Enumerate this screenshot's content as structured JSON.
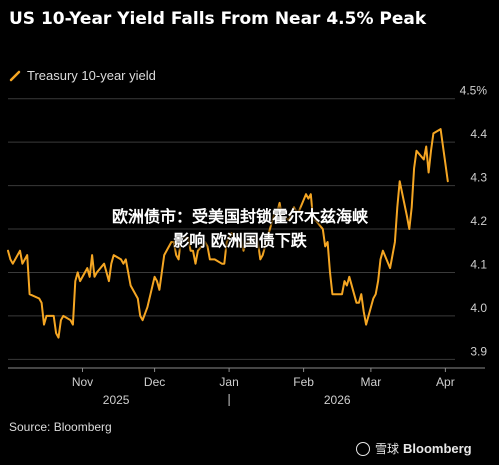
{
  "header": {
    "title": "US 10-Year Yield Falls From Near 4.5% Peak"
  },
  "footer": {
    "source": "Source: Bloomberg"
  },
  "overlay": {
    "headline_line1": "欧洲债市：受美国封锁霍尔木兹海峡",
    "headline_line2": "影响 欧洲国债下跌"
  },
  "watermark": {
    "site": "雪球",
    "logo": "Bloomberg"
  },
  "chart_data": {
    "type": "line",
    "title": "US 10-Year Yield Falls From Near 4.5% Peak",
    "xlabel": "",
    "ylabel": "",
    "ylim": [
      3.88,
      4.52
    ],
    "xlim": [
      "2025-10-01",
      "2026-04-05"
    ],
    "grid": true,
    "legend": "top-left",
    "x_tick_labels": [
      "Nov",
      "Dec",
      "Jan",
      "Feb",
      "Mar",
      "Apr"
    ],
    "x_ticks": [
      "2025-11-01",
      "2025-12-01",
      "2026-01-01",
      "2026-02-01",
      "2026-03-01",
      "2026-04-01"
    ],
    "year_labels": [
      {
        "label": "2025",
        "at": "2025-11-15"
      },
      {
        "label": "2026",
        "at": "2026-02-15"
      }
    ],
    "year_divider": "2026-01-01",
    "y_ticks": [
      3.9,
      4.0,
      4.1,
      4.2,
      4.3,
      4.4,
      4.5
    ],
    "y_tick_labels": [
      "3.9",
      "4.0",
      "4.1",
      "4.2",
      "4.3",
      "4.4",
      "4.5%"
    ],
    "colors": {
      "line": "#f5a623",
      "grid": "#3a3a3a",
      "axis": "#cfcfcf"
    },
    "series": [
      {
        "name": "Treasury 10-year yield",
        "x": [
          "2025-10-01",
          "2025-10-02",
          "2025-10-03",
          "2025-10-06",
          "2025-10-07",
          "2025-10-08",
          "2025-10-09",
          "2025-10-10",
          "2025-10-14",
          "2025-10-15",
          "2025-10-16",
          "2025-10-17",
          "2025-10-20",
          "2025-10-21",
          "2025-10-22",
          "2025-10-23",
          "2025-10-24",
          "2025-10-27",
          "2025-10-28",
          "2025-10-29",
          "2025-10-30",
          "2025-10-31",
          "2025-11-03",
          "2025-11-04",
          "2025-11-05",
          "2025-11-06",
          "2025-11-07",
          "2025-11-10",
          "2025-11-11",
          "2025-11-12",
          "2025-11-13",
          "2025-11-14",
          "2025-11-17",
          "2025-11-18",
          "2025-11-19",
          "2025-11-20",
          "2025-11-21",
          "2025-11-24",
          "2025-11-25",
          "2025-11-26",
          "2025-11-28",
          "2025-12-01",
          "2025-12-02",
          "2025-12-03",
          "2025-12-04",
          "2025-12-05",
          "2025-12-08",
          "2025-12-09",
          "2025-12-10",
          "2025-12-11",
          "2025-12-12",
          "2025-12-15",
          "2025-12-16",
          "2025-12-17",
          "2025-12-18",
          "2025-12-19",
          "2025-12-22",
          "2025-12-23",
          "2025-12-24",
          "2025-12-26",
          "2025-12-29",
          "2025-12-30",
          "2025-12-31",
          "2026-01-02",
          "2026-01-05",
          "2026-01-06",
          "2026-01-07",
          "2026-01-08",
          "2026-01-09",
          "2026-01-12",
          "2026-01-13",
          "2026-01-14",
          "2026-01-15",
          "2026-01-16",
          "2026-01-20",
          "2026-01-21",
          "2026-01-22",
          "2026-01-23",
          "2026-01-26",
          "2026-01-27",
          "2026-01-28",
          "2026-01-29",
          "2026-01-30",
          "2026-02-02",
          "2026-02-03",
          "2026-02-04",
          "2026-02-05",
          "2026-02-06",
          "2026-02-09",
          "2026-02-10",
          "2026-02-11",
          "2026-02-12",
          "2026-02-13",
          "2026-02-17",
          "2026-02-18",
          "2026-02-19",
          "2026-02-20",
          "2026-02-23",
          "2026-02-24",
          "2026-02-25",
          "2026-02-26",
          "2026-02-27",
          "2026-03-02",
          "2026-03-03",
          "2026-03-04",
          "2026-03-05",
          "2026-03-06",
          "2026-03-09",
          "2026-03-10",
          "2026-03-11",
          "2026-03-12",
          "2026-03-13",
          "2026-03-16",
          "2026-03-17",
          "2026-03-18",
          "2026-03-19",
          "2026-03-20",
          "2026-03-23",
          "2026-03-24",
          "2026-03-25",
          "2026-03-26",
          "2026-03-27",
          "2026-03-30",
          "2026-03-31",
          "2026-04-01",
          "2026-04-02"
        ],
        "values": [
          4.15,
          4.13,
          4.12,
          4.15,
          4.12,
          4.13,
          4.14,
          4.05,
          4.04,
          4.03,
          3.98,
          4.0,
          4.0,
          3.96,
          3.95,
          3.99,
          4.0,
          3.99,
          3.98,
          4.08,
          4.1,
          4.08,
          4.11,
          4.09,
          4.14,
          4.09,
          4.1,
          4.12,
          4.1,
          4.08,
          4.12,
          4.14,
          4.13,
          4.12,
          4.13,
          4.1,
          4.07,
          4.04,
          4.0,
          3.99,
          4.02,
          4.09,
          4.08,
          4.06,
          4.1,
          4.14,
          4.17,
          4.17,
          4.14,
          4.13,
          4.18,
          4.18,
          4.15,
          4.15,
          4.12,
          4.15,
          4.17,
          4.16,
          4.13,
          4.13,
          4.12,
          4.12,
          4.17,
          4.19,
          4.16,
          4.18,
          4.15,
          4.17,
          4.17,
          4.18,
          4.17,
          4.13,
          4.14,
          4.16,
          4.24,
          4.24,
          4.26,
          4.23,
          4.22,
          4.24,
          4.25,
          4.24,
          4.24,
          4.28,
          4.27,
          4.28,
          4.22,
          4.22,
          4.2,
          4.16,
          4.17,
          4.1,
          4.05,
          4.05,
          4.08,
          4.07,
          4.09,
          4.03,
          4.03,
          4.05,
          4.01,
          3.98,
          4.04,
          4.05,
          4.08,
          4.13,
          4.15,
          4.11,
          4.14,
          4.17,
          4.25,
          4.31,
          4.23,
          4.2,
          4.25,
          4.34,
          4.38,
          4.36,
          4.39,
          4.33,
          4.38,
          4.42,
          4.43,
          4.39,
          4.35,
          4.31
        ]
      }
    ]
  }
}
